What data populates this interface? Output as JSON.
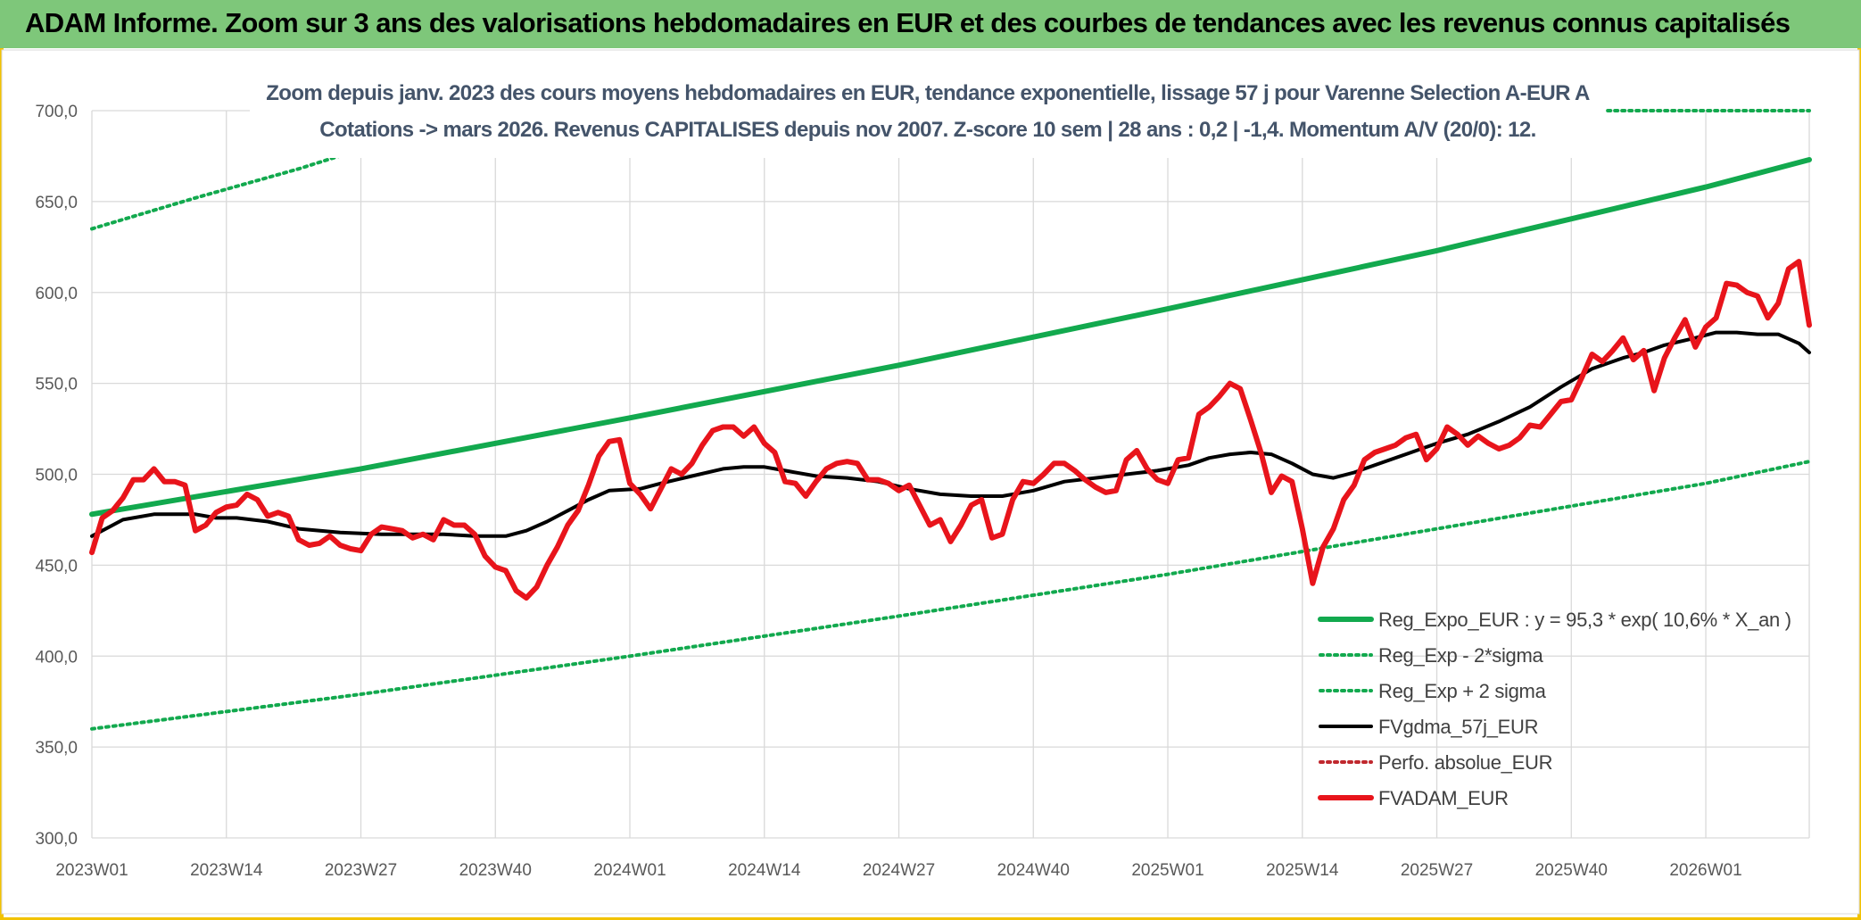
{
  "banner": {
    "title": "ADAM Informe. Zoom sur 3 ans des valorisations hebdomadaires en EUR et des courbes de tendances avec les revenus connus capitalisés"
  },
  "chart_data": {
    "type": "line",
    "title_line1": "Zoom depuis janv. 2023 des cours moyens hebdomadaires en EUR, tendance exponentielle, lissage 57 j pour Varenne Selection A-EUR A",
    "title_line2": "Cotations -> mars 2026. Revenus CAPITALISES depuis nov 2007. Z-score 10 sem | 28 ans : 0,2 | -1,4. Momentum A/V (20/0): 12.",
    "ylim": [
      300,
      700
    ],
    "yticks": [
      "300,0",
      "350,0",
      "400,0",
      "450,0",
      "500,0",
      "550,0",
      "600,0",
      "650,0",
      "700,0"
    ],
    "ytick_values": [
      300,
      350,
      400,
      450,
      500,
      550,
      600,
      650,
      700
    ],
    "x_range_weeks": [
      0,
      166
    ],
    "xticks": [
      "2023W01",
      "2023W14",
      "2023W27",
      "2023W40",
      "2024W01",
      "2024W14",
      "2024W27",
      "2024W40",
      "2025W01",
      "2025W14",
      "2025W27",
      "2025W40",
      "2026W01"
    ],
    "xtick_weeks": [
      0,
      13,
      26,
      39,
      52,
      65,
      78,
      91,
      104,
      117,
      130,
      143,
      156
    ],
    "grid": true,
    "legend_position": "bottom-right",
    "colors": {
      "green": "#12a94e",
      "black": "#000000",
      "red": "#e8141b",
      "darkred": "#c0282e"
    },
    "series": [
      {
        "name": "Reg_Expo_EUR : y = 95,3 * exp( 10,6% *  X_an )",
        "style": "solid-thick",
        "color": "#12a94e",
        "x": [
          0,
          26,
          52,
          78,
          104,
          130,
          156,
          166
        ],
        "values": [
          478,
          503,
          531,
          560,
          591,
          623,
          658,
          673
        ]
      },
      {
        "name": "Reg_Exp - 2*sigma",
        "style": "dotted",
        "color": "#12a94e",
        "x": [
          0,
          26,
          52,
          78,
          104,
          130,
          156,
          166
        ],
        "values": [
          360,
          379,
          400,
          422,
          445,
          470,
          495,
          507
        ]
      },
      {
        "name": "Reg_Exp + 2 sigma",
        "style": "dotted",
        "color": "#12a94e",
        "x": [
          0,
          10,
          20,
          30,
          36,
          150,
          166
        ],
        "values": [
          635,
          652,
          668,
          686,
          700,
          700,
          700
        ]
      },
      {
        "name": "FVgdma_57j_EUR",
        "style": "solid",
        "color": "#000000",
        "x": [
          0,
          3,
          6,
          8,
          10,
          12,
          14,
          17,
          20,
          24,
          28,
          31,
          34,
          37,
          40,
          42,
          44,
          46,
          48,
          50,
          53,
          55,
          58,
          61,
          63,
          65,
          67,
          70,
          73,
          76,
          79,
          82,
          85,
          88,
          91,
          94,
          97,
          100,
          103,
          106,
          108,
          110,
          112,
          114,
          116,
          118,
          120,
          122,
          124,
          127,
          130,
          133,
          136,
          139,
          142,
          145,
          148,
          150,
          152,
          155,
          157,
          159,
          161,
          163,
          165,
          166
        ],
        "values": [
          466,
          475,
          478,
          478,
          478,
          476,
          476,
          474,
          470,
          468,
          467,
          467,
          467,
          466,
          466,
          469,
          474,
          480,
          486,
          491,
          492,
          495,
          499,
          503,
          504,
          504,
          502,
          499,
          498,
          496,
          492,
          489,
          488,
          488,
          491,
          496,
          498,
          500,
          502,
          505,
          509,
          511,
          512,
          511,
          506,
          500,
          498,
          501,
          505,
          511,
          517,
          522,
          529,
          537,
          548,
          558,
          564,
          567,
          571,
          575,
          578,
          578,
          577,
          577,
          572,
          567
        ]
      },
      {
        "name": "Perfo. absolue_EUR",
        "style": "dotted",
        "color": "#c0282e",
        "x": [],
        "values": []
      },
      {
        "name": "FVADAM_EUR",
        "style": "solid-thick",
        "color": "#e8141b",
        "x": [
          0,
          1,
          2,
          3,
          4,
          5,
          6,
          7,
          8,
          9,
          10,
          11,
          12,
          13,
          14,
          15,
          16,
          17,
          18,
          19,
          20,
          21,
          22,
          23,
          24,
          25,
          26,
          27,
          28,
          29,
          30,
          31,
          32,
          33,
          34,
          35,
          36,
          37,
          38,
          39,
          40,
          41,
          42,
          43,
          44,
          45,
          46,
          47,
          48,
          49,
          50,
          51,
          52,
          53,
          54,
          55,
          56,
          57,
          58,
          59,
          60,
          61,
          62,
          63,
          64,
          65,
          66,
          67,
          68,
          69,
          70,
          71,
          72,
          73,
          74,
          75,
          76,
          77,
          78,
          79,
          80,
          81,
          82,
          83,
          84,
          85,
          86,
          87,
          88,
          89,
          90,
          91,
          92,
          93,
          94,
          95,
          96,
          97,
          98,
          99,
          100,
          101,
          102,
          103,
          104,
          105,
          106,
          107,
          108,
          109,
          110,
          111,
          112,
          113,
          114,
          115,
          116,
          117,
          118,
          119,
          120,
          121,
          122,
          123,
          124,
          125,
          126,
          127,
          128,
          129,
          130,
          131,
          132,
          133,
          134,
          135,
          136,
          137,
          138,
          139,
          140,
          141,
          142,
          143,
          144,
          145,
          146,
          147,
          148,
          149,
          150,
          151,
          152,
          153,
          154,
          155,
          156,
          157,
          158,
          159,
          160,
          161,
          162,
          163,
          164,
          165,
          166
        ],
        "values": [
          457,
          476,
          480,
          487,
          497,
          497,
          503,
          496,
          496,
          494,
          469,
          472,
          479,
          482,
          483,
          489,
          486,
          477,
          479,
          477,
          464,
          461,
          462,
          466,
          461,
          459,
          458,
          467,
          471,
          470,
          469,
          465,
          467,
          464,
          475,
          472,
          472,
          467,
          455,
          449,
          447,
          436,
          432,
          438,
          450,
          460,
          472,
          480,
          494,
          510,
          518,
          519,
          495,
          489,
          481,
          492,
          503,
          500,
          506,
          516,
          524,
          526,
          526,
          521,
          526,
          517,
          512,
          496,
          495,
          488,
          496,
          503,
          506,
          507,
          506,
          497,
          497,
          495,
          491,
          494,
          483,
          472,
          475,
          463,
          472,
          483,
          486,
          465,
          467,
          486,
          496,
          495,
          500,
          506,
          506,
          502,
          497,
          493,
          490,
          491,
          508,
          513,
          503,
          497,
          495,
          508,
          509,
          533,
          537,
          543,
          550,
          547,
          530,
          512,
          490,
          499,
          496,
          470,
          440,
          460,
          470,
          486,
          494,
          508,
          512,
          514,
          516,
          520,
          522,
          508,
          514,
          526,
          522,
          516,
          521,
          517,
          514,
          516,
          520,
          527,
          526,
          533,
          540,
          541,
          553,
          566,
          562,
          568,
          575,
          563,
          568,
          546,
          564,
          575,
          585,
          570,
          581,
          586,
          605,
          604,
          600,
          598,
          586,
          594,
          613,
          617,
          582
        ]
      }
    ]
  }
}
